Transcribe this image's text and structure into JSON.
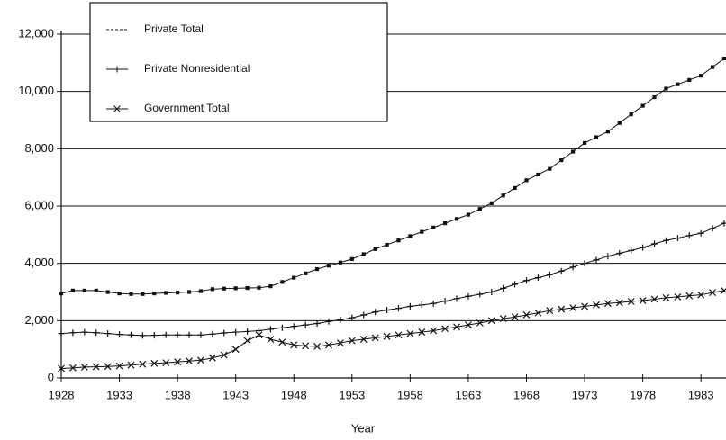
{
  "chart_data": {
    "type": "line",
    "x_label": "Year",
    "x": [
      1928,
      1929,
      1930,
      1931,
      1932,
      1933,
      1934,
      1935,
      1936,
      1937,
      1938,
      1939,
      1940,
      1941,
      1942,
      1943,
      1944,
      1945,
      1946,
      1947,
      1948,
      1949,
      1950,
      1951,
      1952,
      1953,
      1954,
      1955,
      1956,
      1957,
      1958,
      1959,
      1960,
      1961,
      1962,
      1963,
      1964,
      1965,
      1966,
      1967,
      1968,
      1969,
      1970,
      1971,
      1972,
      1973,
      1974,
      1975,
      1976,
      1977,
      1978,
      1979,
      1980,
      1981,
      1982,
      1983,
      1984,
      1985
    ],
    "xlim": [
      1928,
      1985
    ],
    "xticks": [
      1928,
      1933,
      1938,
      1943,
      1948,
      1953,
      1958,
      1963,
      1968,
      1973,
      1978,
      1983
    ],
    "ylim": [
      0,
      12000
    ],
    "yticks": [
      0,
      {
        "value": 2000,
        "label": "2,000"
      },
      {
        "value": 4000,
        "label": "4,000"
      },
      {
        "value": 6000,
        "label": "6,000"
      },
      {
        "value": 8000,
        "label": "8,000"
      },
      {
        "value": 10000,
        "label": "10,000"
      },
      {
        "value": 12000,
        "label": "12,000"
      }
    ],
    "grid": true,
    "legend": "top-left",
    "series": [
      {
        "name": "Private Total",
        "color": "#111111",
        "marker": "square",
        "values": [
          2950,
          3050,
          3050,
          3050,
          3000,
          2950,
          2930,
          2930,
          2950,
          2970,
          2980,
          3000,
          3030,
          3100,
          3120,
          3130,
          3140,
          3150,
          3200,
          3350,
          3500,
          3650,
          3800,
          3920,
          4030,
          4150,
          4320,
          4500,
          4650,
          4800,
          4950,
          5100,
          5250,
          5400,
          5550,
          5700,
          5900,
          6100,
          6370,
          6630,
          6900,
          7100,
          7300,
          7600,
          7900,
          8200,
          8400,
          8600,
          8900,
          9200,
          9500,
          9800,
          10100,
          10250,
          10400,
          10550,
          10850,
          11150
        ]
      },
      {
        "name": "Private Nonresidential",
        "color": "#111111",
        "marker": "plus",
        "values": [
          1550,
          1580,
          1600,
          1580,
          1550,
          1520,
          1500,
          1480,
          1490,
          1500,
          1500,
          1500,
          1500,
          1530,
          1570,
          1600,
          1620,
          1650,
          1700,
          1750,
          1800,
          1850,
          1900,
          1970,
          2030,
          2100,
          2200,
          2300,
          2370,
          2430,
          2500,
          2550,
          2600,
          2680,
          2770,
          2850,
          2920,
          3000,
          3130,
          3270,
          3400,
          3500,
          3600,
          3730,
          3870,
          4000,
          4120,
          4250,
          4350,
          4450,
          4550,
          4680,
          4800,
          4880,
          4970,
          5050,
          5220,
          5400
        ]
      },
      {
        "name": "Government Total",
        "color": "#111111",
        "marker": "cross",
        "values": [
          330,
          350,
          380,
          390,
          400,
          420,
          450,
          480,
          510,
          530,
          560,
          590,
          620,
          700,
          800,
          1000,
          1300,
          1500,
          1350,
          1250,
          1150,
          1120,
          1100,
          1150,
          1220,
          1300,
          1350,
          1400,
          1450,
          1500,
          1550,
          1600,
          1650,
          1720,
          1780,
          1850,
          1920,
          2000,
          2070,
          2130,
          2200,
          2270,
          2350,
          2400,
          2450,
          2500,
          2550,
          2600,
          2630,
          2670,
          2700,
          2750,
          2800,
          2830,
          2870,
          2900,
          2980,
          3050
        ]
      }
    ]
  }
}
